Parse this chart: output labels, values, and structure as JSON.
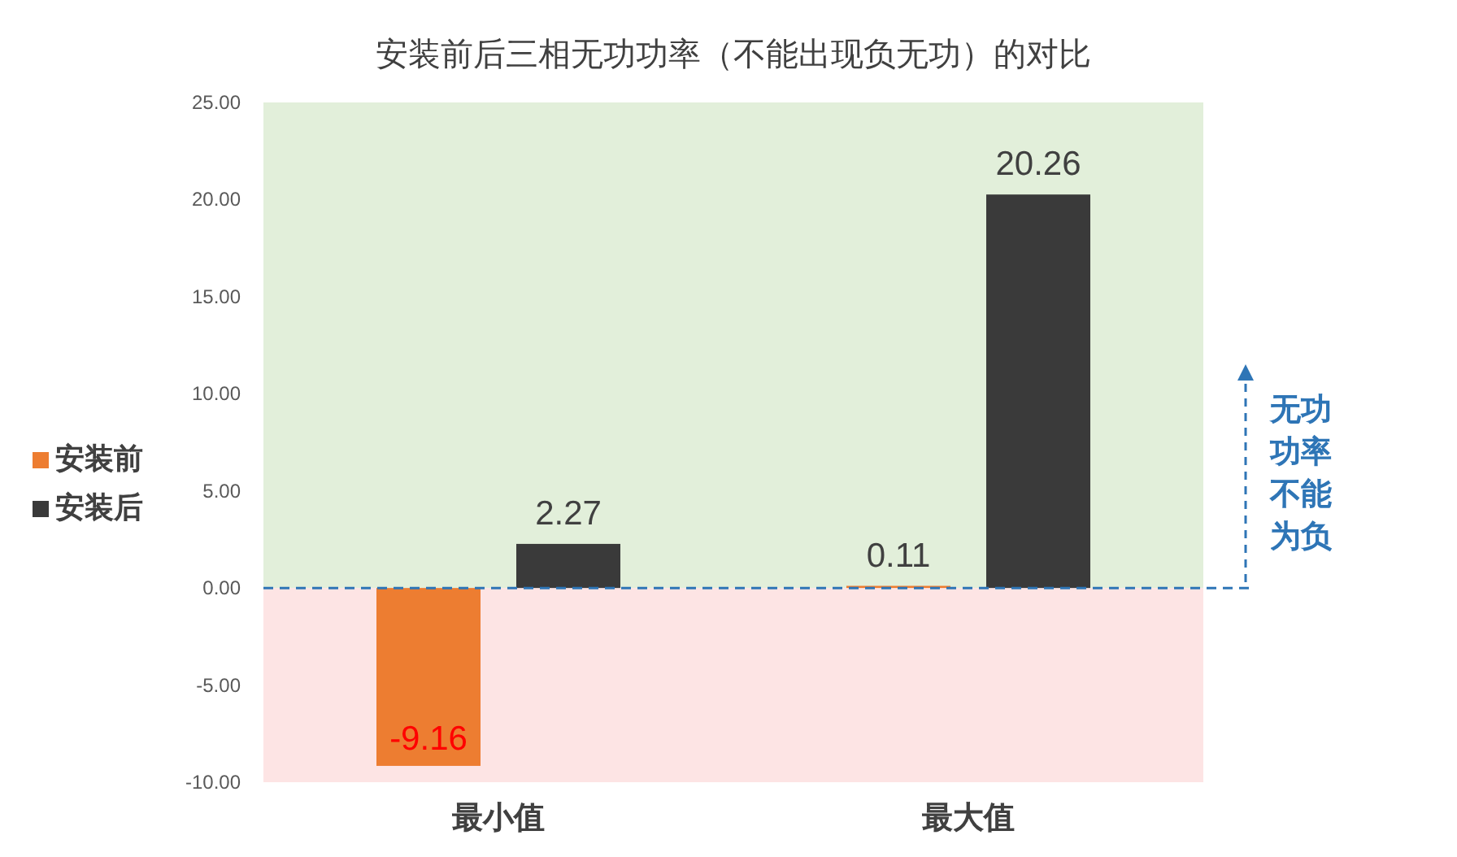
{
  "chart_data": {
    "type": "bar",
    "title": "安装前后三相无功功率（不能出现负无功）的对比",
    "categories": [
      "最小值",
      "最大值"
    ],
    "series": [
      {
        "name": "安装前",
        "color": "#ed7d31",
        "values": [
          -9.16,
          0.11
        ]
      },
      {
        "name": "安装后",
        "color": "#3a3a3a",
        "values": [
          2.27,
          20.26
        ]
      }
    ],
    "ylim": [
      -10,
      25
    ],
    "yticks": [
      {
        "value": 25,
        "label": "25.00"
      },
      {
        "value": 20,
        "label": "20.00"
      },
      {
        "value": 15,
        "label": "15.00"
      },
      {
        "value": 10,
        "label": "10.00"
      },
      {
        "value": 5,
        "label": "5.00"
      },
      {
        "value": 0,
        "label": "0.00"
      },
      {
        "value": -5,
        "label": "-5.00"
      },
      {
        "value": -10,
        "label": "-10.00"
      }
    ],
    "bands": [
      {
        "axis": "y",
        "from": 0,
        "to": 25,
        "color": "#e2efda"
      },
      {
        "axis": "y",
        "from": -10,
        "to": 0,
        "color": "#fde4e4"
      }
    ],
    "ref_lines": [
      {
        "axis": "y",
        "value": 0,
        "color": "#2e75b6",
        "line_style": "dashed"
      }
    ],
    "annotations": [
      "无功功率不能为负"
    ],
    "data_labels": true,
    "legend": "left",
    "grid": false
  }
}
